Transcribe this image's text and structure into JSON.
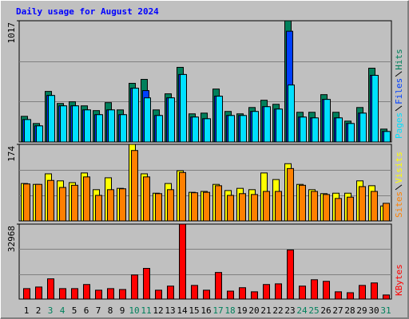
{
  "chart_data": [
    {
      "type": "bar",
      "title": "Daily usage for August 2024",
      "ylim": [
        0,
        1017
      ],
      "yticks": [
        1017
      ],
      "series": [
        {
          "name": "Hits",
          "color": "#00805c",
          "values": [
            215,
            155,
            424,
            323,
            337,
            303,
            263,
            330,
            269,
            492,
            525,
            269,
            404,
            626,
            236,
            242,
            444,
            256,
            236,
            289,
            350,
            316,
            1017,
            249,
            249,
            397,
            249,
            175,
            289,
            619,
            108
          ]
        },
        {
          "name": "Files",
          "color": "#0040ff",
          "values": [
            188,
            135,
            390,
            303,
            303,
            269,
            229,
            269,
            229,
            451,
            431,
            222,
            370,
            566,
            209,
            195,
            384,
            222,
            222,
            256,
            296,
            276,
            929,
            209,
            202,
            357,
            202,
            155,
            242,
            559,
            88
          ]
        },
        {
          "name": "Pages",
          "color": "#00e0ff",
          "values": [
            188,
            135,
            390,
            303,
            303,
            269,
            229,
            269,
            229,
            451,
            370,
            222,
            370,
            566,
            209,
            195,
            384,
            222,
            222,
            256,
            296,
            276,
            478,
            209,
            202,
            357,
            202,
            155,
            242,
            559,
            88
          ]
        }
      ]
    },
    {
      "type": "bar",
      "ylim": [
        0,
        174
      ],
      "yticks": [
        174
      ],
      "series": [
        {
          "name": "Visits",
          "color": "#ffff00",
          "values": [
            85,
            83,
            107,
            91,
            87,
            109,
            71,
            98,
            74,
            174,
            107,
            63,
            85,
            114,
            65,
            67,
            83,
            69,
            74,
            71,
            109,
            94,
            130,
            83,
            71,
            62,
            63,
            63,
            91,
            80,
            34
          ]
        },
        {
          "name": "Sites",
          "color": "#ff8000",
          "values": [
            84,
            83,
            92,
            76,
            81,
            100,
            58,
            71,
            73,
            160,
            100,
            62,
            71,
            110,
            64,
            65,
            80,
            58,
            62,
            60,
            67,
            67,
            119,
            81,
            67,
            60,
            51,
            54,
            78,
            67,
            40
          ]
        }
      ]
    },
    {
      "type": "bar",
      "ylim": [
        0,
        32968
      ],
      "yticks": [
        32968
      ],
      "categories": [
        "1",
        "2",
        "3",
        "4",
        "5",
        "6",
        "7",
        "8",
        "9",
        "10",
        "11",
        "12",
        "13",
        "14",
        "15",
        "16",
        "17",
        "18",
        "19",
        "20",
        "21",
        "22",
        "23",
        "24",
        "25",
        "26",
        "27",
        "28",
        "29",
        "30",
        "31"
      ],
      "category_colors": [
        "#000000",
        "#000000",
        "#00805c",
        "#00805c",
        "#000000",
        "#000000",
        "#000000",
        "#000000",
        "#000000",
        "#00805c",
        "#00805c",
        "#000000",
        "#000000",
        "#000000",
        "#000000",
        "#000000",
        "#00805c",
        "#00805c",
        "#000000",
        "#000000",
        "#000000",
        "#000000",
        "#000000",
        "#00805c",
        "#00805c",
        "#000000",
        "#000000",
        "#000000",
        "#000000",
        "#000000",
        "#00805c"
      ],
      "series": [
        {
          "name": "KBytes",
          "color": "#ff0000",
          "values": [
            4600,
            5300,
            8900,
            4600,
            4600,
            6400,
            3900,
            4600,
            4200,
            10600,
            13500,
            3900,
            5700,
            32968,
            6000,
            3900,
            11700,
            3500,
            5000,
            3200,
            6400,
            6700,
            21600,
            5700,
            8500,
            7800,
            3200,
            2800,
            6000,
            7100,
            1800
          ]
        }
      ]
    }
  ]
}
